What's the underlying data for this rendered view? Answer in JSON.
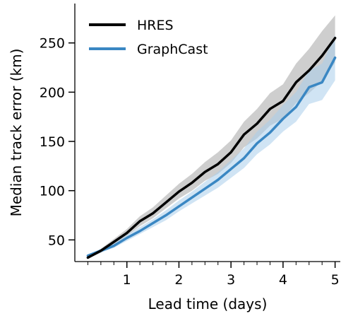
{
  "chart_data": {
    "type": "line",
    "xlabel": "Lead time (days)",
    "ylabel": "Median track error (km)",
    "xlim": [
      0.0,
      5.1
    ],
    "ylim": [
      28,
      290
    ],
    "xticks": [
      1,
      2,
      3,
      4,
      5
    ],
    "xminor_step": 0.25,
    "yticks": [
      50,
      100,
      150,
      200,
      250
    ],
    "grid": false,
    "legend": "top-left",
    "x": [
      0.25,
      0.5,
      0.75,
      1.0,
      1.25,
      1.5,
      1.75,
      2.0,
      2.25,
      2.5,
      2.75,
      3.0,
      3.25,
      3.5,
      3.75,
      4.0,
      4.25,
      4.5,
      4.75,
      5.0
    ],
    "series": [
      {
        "name": "HRES",
        "color": "#000000",
        "band_color": "#a6a6a6",
        "values": [
          32,
          39,
          48,
          57,
          69,
          77,
          88,
          99,
          108,
          119,
          127,
          139,
          157,
          168,
          183,
          191,
          210,
          222,
          237,
          255
        ],
        "lower": [
          31,
          37,
          45,
          54,
          64,
          72,
          82,
          92,
          100,
          110,
          117,
          128,
          144,
          153,
          166,
          173,
          189,
          199,
          211,
          230
        ],
        "upper": [
          33,
          41,
          51,
          61,
          74,
          83,
          95,
          107,
          117,
          129,
          139,
          151,
          170,
          183,
          199,
          208,
          229,
          244,
          262,
          278
        ]
      },
      {
        "name": "GraphCast",
        "color": "#3a87c3",
        "band_color": "#a9cdeb",
        "values": [
          34,
          39,
          44,
          52,
          59,
          67,
          75,
          84,
          93,
          102,
          111,
          122,
          133,
          148,
          159,
          173,
          185,
          205,
          210,
          235
        ],
        "lower": [
          33,
          37,
          42,
          49,
          56,
          63,
          70,
          79,
          87,
          95,
          103,
          113,
          123,
          137,
          147,
          160,
          170,
          188,
          192,
          212
        ],
        "upper": [
          35,
          41,
          47,
          55,
          63,
          71,
          80,
          90,
          99,
          109,
          119,
          131,
          143,
          160,
          172,
          187,
          200,
          222,
          229,
          258
        ]
      }
    ]
  }
}
